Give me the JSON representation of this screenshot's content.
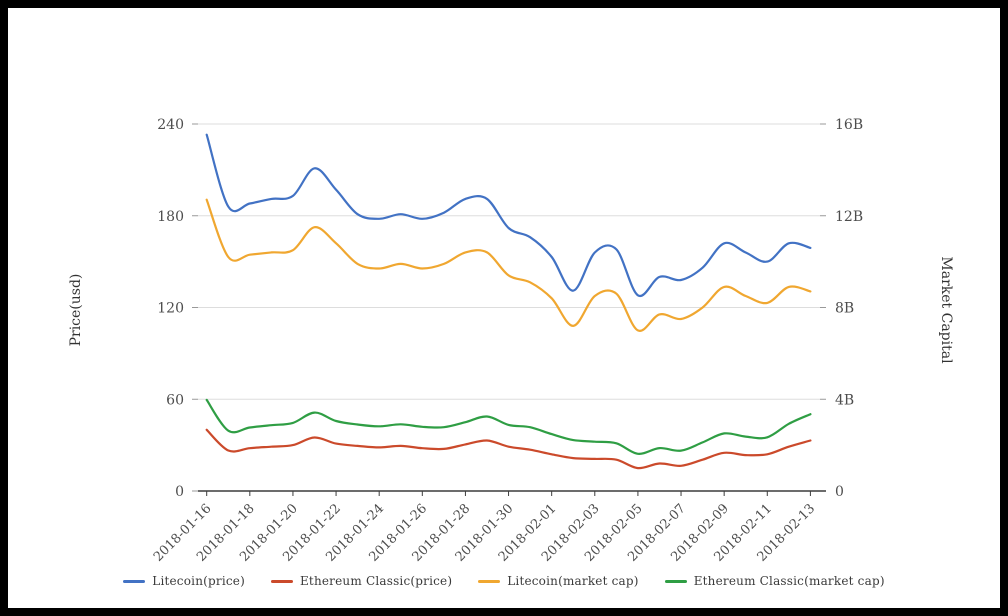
{
  "chart_data": {
    "type": "line",
    "smooth": true,
    "grid": true,
    "legend_position": "bottom",
    "background": "#ffffff",
    "frame_border_color": "#000000",
    "gridline_color": "#dddddd",
    "axis_line_color": "#3c3c3c",
    "tick_label_color": "#4d4d4d",
    "axis_title_color": "#333333",
    "ylabel_left": "Price(usd)",
    "ylabel_right": "Market Capital",
    "ylim_left": [
      0,
      240
    ],
    "ylim_right": [
      0,
      16000000000
    ],
    "left_axis_ticks": [
      "240",
      "180",
      "120",
      "60",
      "0"
    ],
    "right_axis_ticks": [
      "16B",
      "12B",
      "8B",
      "4B",
      "0"
    ],
    "x_tick_labels": [
      "2018-01-16",
      "2018-01-18",
      "2018-01-20",
      "2018-01-22",
      "2018-01-24",
      "2018-01-26",
      "2018-01-28",
      "2018-01-30",
      "2018-02-01",
      "2018-02-03",
      "2018-02-05",
      "2018-02-07",
      "2018-02-09",
      "2018-02-11",
      "2018-02-13"
    ],
    "x": [
      "2018-01-16",
      "2018-01-17",
      "2018-01-18",
      "2018-01-19",
      "2018-01-20",
      "2018-01-21",
      "2018-01-22",
      "2018-01-23",
      "2018-01-24",
      "2018-01-25",
      "2018-01-26",
      "2018-01-27",
      "2018-01-28",
      "2018-01-29",
      "2018-01-30",
      "2018-01-31",
      "2018-02-01",
      "2018-02-02",
      "2018-02-03",
      "2018-02-04",
      "2018-02-05",
      "2018-02-06",
      "2018-02-07",
      "2018-02-08",
      "2018-02-09",
      "2018-02-10",
      "2018-02-11",
      "2018-02-12",
      "2018-02-13"
    ],
    "series": [
      {
        "name": "Litecoin(price)",
        "axis": "left",
        "color": "#4272c4",
        "values": [
          233,
          186,
          188,
          191,
          193,
          211,
          197,
          181,
          178,
          181,
          178,
          182,
          191,
          191,
          172,
          166,
          153,
          131,
          156,
          158,
          128,
          140,
          138,
          146,
          162,
          156,
          150,
          162,
          159
        ]
      },
      {
        "name": "Ethereum Classic(price)",
        "axis": "left",
        "color": "#cb4a2b",
        "values": [
          40,
          26.5,
          28,
          29,
          30,
          35,
          31,
          29.5,
          28.5,
          29.5,
          28,
          27.5,
          30.5,
          33,
          29,
          27,
          24,
          21.5,
          21,
          20.5,
          15,
          18,
          16.5,
          20.5,
          25,
          23.5,
          24,
          29,
          33
        ]
      },
      {
        "name": "Litecoin(market cap)",
        "axis": "right",
        "color": "#f0a730",
        "values": [
          12.7,
          10.2,
          10.3,
          10.4,
          10.5,
          11.5,
          10.8,
          9.9,
          9.7,
          9.9,
          9.7,
          9.9,
          10.4,
          10.4,
          9.4,
          9.1,
          8.4,
          7.2,
          8.5,
          8.6,
          7.0,
          7.7,
          7.5,
          8.0,
          8.9,
          8.5,
          8.2,
          8.9,
          8.7
        ]
      },
      {
        "name": "Ethereum Classic(market cap)",
        "axis": "right",
        "color": "#2f9e44",
        "values": [
          3.97,
          2.63,
          2.77,
          2.87,
          2.97,
          3.42,
          3.05,
          2.9,
          2.82,
          2.91,
          2.8,
          2.78,
          3.0,
          3.25,
          2.88,
          2.78,
          2.48,
          2.22,
          2.15,
          2.08,
          1.62,
          1.87,
          1.76,
          2.12,
          2.51,
          2.37,
          2.34,
          2.93,
          3.35
        ]
      }
    ]
  }
}
